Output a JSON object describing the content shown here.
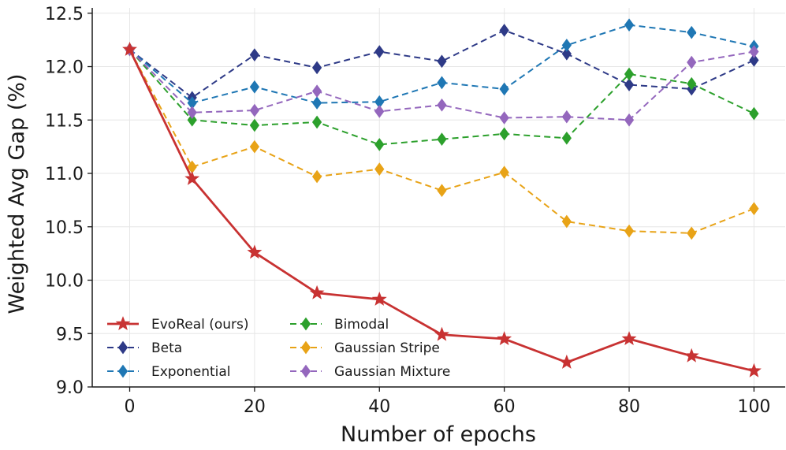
{
  "chart_data": {
    "type": "line",
    "title": "",
    "xlabel": "Number of epochs",
    "ylabel": "Weighted Avg Gap (%)",
    "xlim": [
      -6,
      105
    ],
    "ylim": [
      9.0,
      12.55
    ],
    "xticks": [
      0,
      20,
      40,
      60,
      80,
      100
    ],
    "xtick_labels": [
      "0",
      "20",
      "40",
      "60",
      "80",
      "100"
    ],
    "yticks": [
      9.0,
      9.5,
      10.0,
      10.5,
      11.0,
      11.5,
      12.0,
      12.5
    ],
    "ytick_labels": [
      "9.0",
      "9.5",
      "10.0",
      "10.5",
      "11.0",
      "11.5",
      "12.0",
      "12.5"
    ],
    "grid": true,
    "legend_position": "bottom-left",
    "legend_columns": 2,
    "x": [
      0,
      10,
      20,
      30,
      40,
      50,
      60,
      70,
      80,
      90,
      100
    ],
    "series": [
      {
        "name": "EvoReal (ours)",
        "color": "#c83232",
        "marker": "star",
        "dash": "solid",
        "values": [
          12.16,
          10.95,
          10.26,
          9.88,
          9.82,
          9.49,
          9.45,
          9.23,
          9.45,
          9.29,
          9.15
        ]
      },
      {
        "name": "Beta",
        "color": "#2e3a87",
        "marker": "diamond",
        "dash": "dashed",
        "values": [
          12.16,
          11.71,
          12.11,
          11.99,
          12.14,
          12.05,
          12.34,
          12.12,
          11.83,
          11.79,
          12.06
        ]
      },
      {
        "name": "Exponential",
        "color": "#1f77b4",
        "marker": "diamond",
        "dash": "dashed",
        "values": [
          12.16,
          11.66,
          11.81,
          11.66,
          11.67,
          11.85,
          11.79,
          12.2,
          12.39,
          12.32,
          12.19
        ]
      },
      {
        "name": "Bimodal",
        "color": "#2ca02c",
        "marker": "diamond",
        "dash": "dashed",
        "values": [
          12.16,
          11.5,
          11.45,
          11.48,
          11.27,
          11.32,
          11.37,
          11.33,
          11.93,
          11.84,
          11.56
        ]
      },
      {
        "name": "Gaussian Stripe",
        "color": "#e8a317",
        "marker": "diamond",
        "dash": "dashed",
        "values": [
          12.16,
          11.06,
          11.25,
          10.97,
          11.04,
          10.84,
          11.01,
          10.55,
          10.46,
          10.44,
          10.67
        ]
      },
      {
        "name": "Gaussian Mixture",
        "color": "#9467bd",
        "marker": "diamond",
        "dash": "dashed",
        "values": [
          12.16,
          11.57,
          11.59,
          11.77,
          11.58,
          11.64,
          11.52,
          11.53,
          11.5,
          12.04,
          12.14
        ]
      }
    ]
  }
}
